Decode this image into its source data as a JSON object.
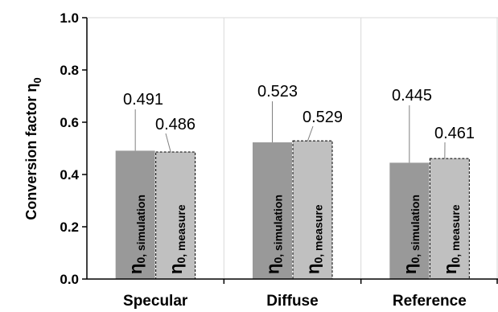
{
  "chart_data": {
    "type": "bar",
    "ylabel": "Conversion factor η",
    "ylabel_subscript": "0",
    "ylim": [
      0.0,
      1.0
    ],
    "yticks": [
      "0.0",
      "0.2",
      "0.4",
      "0.6",
      "0.8",
      "1.0"
    ],
    "grid": true,
    "categories": [
      "Specular",
      "Diffuse",
      "Reference"
    ],
    "series": [
      {
        "name": "η0, simulation",
        "symbol": "η",
        "subscript": "0, simulation",
        "color": "#999999",
        "values": [
          0.491,
          0.523,
          0.445
        ],
        "labels": [
          "0.491",
          "0.523",
          "0.445"
        ]
      },
      {
        "name": "η0, measure",
        "symbol": "η",
        "subscript": "0, measure",
        "color": "#c0c0c0",
        "values": [
          0.486,
          0.529,
          0.461
        ],
        "labels": [
          "0.486",
          "0.529",
          "0.461"
        ]
      }
    ]
  }
}
